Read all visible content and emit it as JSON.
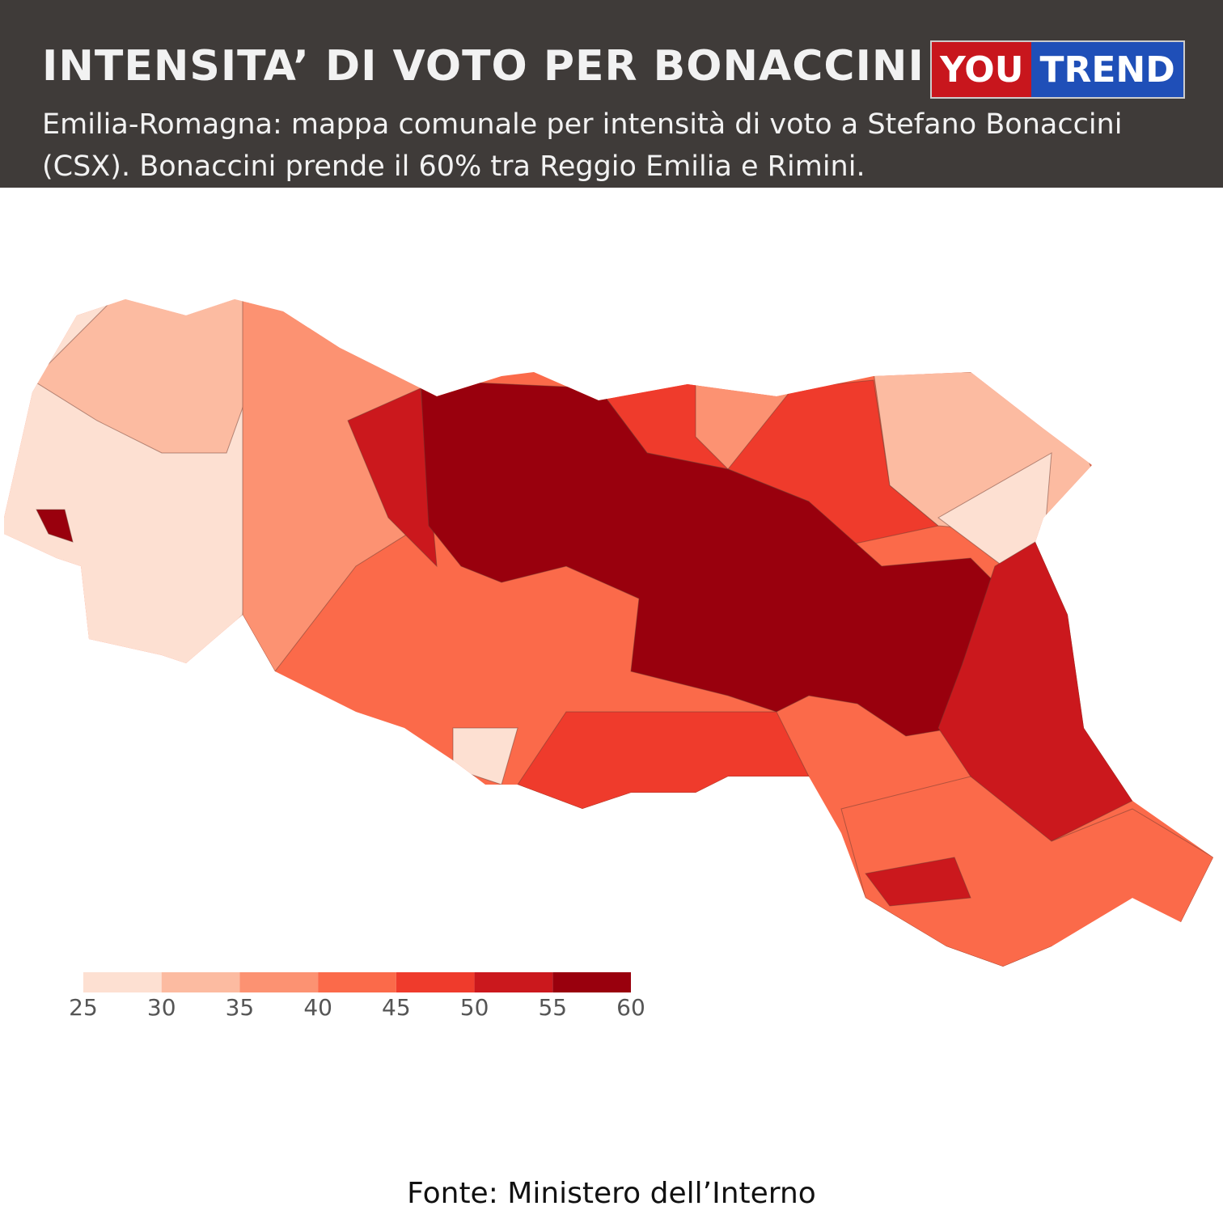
{
  "header": {
    "title": "INTENSITA’ DI VOTO PER BONACCINI",
    "subtitle": "Emilia-Romagna: mappa comunale per intensità di voto a Stefano Bonaccini (CSX). Bonaccini prende il 60% tra Reggio Emilia e Rimini.",
    "logo": [
      "YOU",
      "TREND"
    ]
  },
  "legend": {
    "ticks": [
      25,
      30,
      35,
      40,
      45,
      50,
      55,
      60
    ],
    "colors": [
      "#fde0d2",
      "#fcbba1",
      "#fc9272",
      "#fb6a4a",
      "#ef3b2c",
      "#cb181d",
      "#99000d"
    ]
  },
  "source": "Fonte: Ministero dell’Interno"
}
